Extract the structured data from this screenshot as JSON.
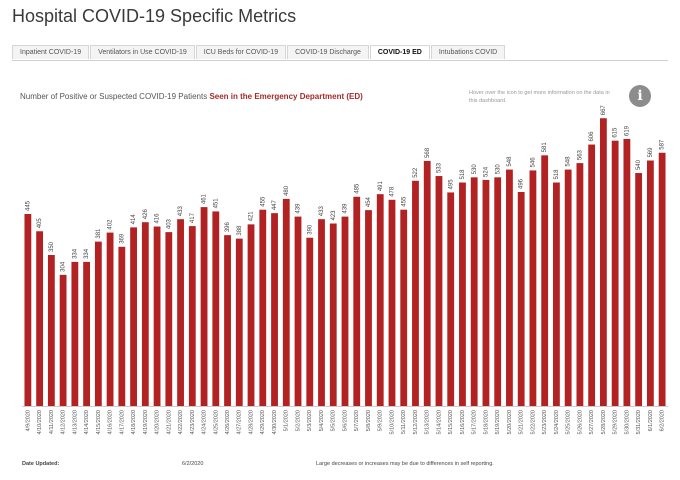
{
  "title": "Hospital COVID-19 Specific Metrics",
  "tabs": [
    {
      "label": "Inpatient COVID-19",
      "active": false
    },
    {
      "label": "Ventilators in Use COVID-19",
      "active": false
    },
    {
      "label": "ICU Beds for COVID-19",
      "active": false
    },
    {
      "label": "COVID-19 Discharge",
      "active": false
    },
    {
      "label": "COVID-19 ED",
      "active": true
    },
    {
      "label": "Intubations COVID",
      "active": false
    }
  ],
  "chart_title_prefix": "Number of Positive or Suspected COVID-19 Patients",
  "chart_title_highlight": "Seen in the Emergency Department (ED)",
  "info_text": "Hover over the icon to get more information on the data in this dashboard.",
  "info_icon": "info-icon",
  "footer": {
    "date_label": "Date Updated:",
    "date_value": "6/2/2020",
    "note": "Large decreases or increases may be due to differences in self reporting."
  },
  "colors": {
    "bar": "#b22222",
    "highlight_text": "#a52a2a"
  },
  "chart_data": {
    "type": "bar",
    "categories": [
      "4/9/2020",
      "4/10/2020",
      "4/11/2020",
      "4/12/2020",
      "4/13/2020",
      "4/14/2020",
      "4/15/2020",
      "4/16/2020",
      "4/17/2020",
      "4/18/2020",
      "4/19/2020",
      "4/20/2020",
      "4/21/2020",
      "4/22/2020",
      "4/23/2020",
      "4/24/2020",
      "4/25/2020",
      "4/26/2020",
      "4/27/2020",
      "4/28/2020",
      "4/29/2020",
      "4/30/2020",
      "5/1/2020",
      "5/2/2020",
      "5/3/2020",
      "5/4/2020",
      "5/5/2020",
      "5/6/2020",
      "5/7/2020",
      "5/8/2020",
      "5/9/2020",
      "5/10/2020",
      "5/11/2020",
      "5/12/2020",
      "5/13/2020",
      "5/14/2020",
      "5/15/2020",
      "5/16/2020",
      "5/17/2020",
      "5/18/2020",
      "5/19/2020",
      "5/20/2020",
      "5/21/2020",
      "5/22/2020",
      "5/23/2020",
      "5/24/2020",
      "5/25/2020",
      "5/26/2020",
      "5/27/2020",
      "5/28/2020",
      "5/29/2020",
      "5/30/2020",
      "5/31/2020",
      "6/1/2020",
      "6/2/2020"
    ],
    "values": [
      445,
      405,
      350,
      304,
      334,
      334,
      381,
      402,
      369,
      414,
      426,
      416,
      403,
      433,
      417,
      461,
      451,
      396,
      388,
      421,
      455,
      447,
      480,
      439,
      390,
      433,
      423,
      439,
      485,
      454,
      491,
      478,
      455,
      522,
      568,
      533,
      495,
      518,
      530,
      524,
      530,
      548,
      496,
      546,
      581,
      518,
      548,
      563,
      606,
      667,
      615,
      619,
      540,
      569,
      587
    ],
    "xlabel": "",
    "ylabel": "",
    "ylim": [
      0,
      700
    ],
    "grid": false
  }
}
